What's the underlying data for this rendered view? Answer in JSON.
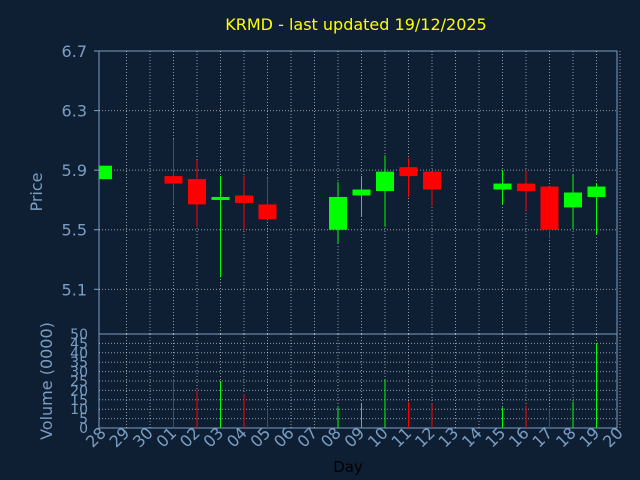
{
  "chart_data": [
    {
      "type": "candlestick",
      "title": "KRMD - last updated 19/12/2025",
      "ylabel": "Price",
      "ylim": [
        4.8,
        6.7
      ],
      "yticks": [
        "6.7",
        "6.3",
        "5.9",
        "5.5",
        "5.1"
      ],
      "grid": true,
      "up_color": "#00ff00",
      "down_color": "#ff0000",
      "candles": [
        {
          "day": "28",
          "open": 5.84,
          "high": 5.93,
          "low": 5.84,
          "close": 5.93
        },
        {
          "day": "01",
          "open": 5.86,
          "high": 6.11,
          "low": 5.67,
          "close": 5.81
        },
        {
          "day": "02",
          "open": 5.84,
          "high": 5.97,
          "low": 5.52,
          "close": 5.67
        },
        {
          "day": "03",
          "open": 5.7,
          "high": 5.86,
          "low": 5.18,
          "close": 5.72
        },
        {
          "day": "04",
          "open": 5.73,
          "high": 5.86,
          "low": 5.5,
          "close": 5.68
        },
        {
          "day": "05",
          "open": 5.67,
          "high": 5.85,
          "low": 5.56,
          "close": 5.57
        },
        {
          "day": "08",
          "open": 5.5,
          "high": 5.82,
          "low": 5.41,
          "close": 5.72
        },
        {
          "day": "09",
          "open": 5.73,
          "high": 5.86,
          "low": 5.59,
          "close": 5.77
        },
        {
          "day": "10",
          "open": 5.76,
          "high": 6.0,
          "low": 5.52,
          "close": 5.89
        },
        {
          "day": "11",
          "open": 5.92,
          "high": 5.98,
          "low": 5.72,
          "close": 5.86
        },
        {
          "day": "12",
          "open": 5.89,
          "high": 5.89,
          "low": 5.66,
          "close": 5.77
        },
        {
          "day": "15",
          "open": 5.77,
          "high": 5.9,
          "low": 5.67,
          "close": 5.81
        },
        {
          "day": "16",
          "open": 5.81,
          "high": 5.9,
          "low": 5.63,
          "close": 5.76
        },
        {
          "day": "17",
          "open": 5.79,
          "high": 5.79,
          "low": 5.44,
          "close": 5.5
        },
        {
          "day": "18",
          "open": 5.65,
          "high": 5.87,
          "low": 5.51,
          "close": 5.75
        },
        {
          "day": "19",
          "open": 5.72,
          "high": 5.81,
          "low": 5.47,
          "close": 5.79
        }
      ]
    },
    {
      "type": "bar",
      "ylabel": "Volume (0000)",
      "xlabel": "Day",
      "ylim": [
        0,
        50
      ],
      "yticks": [
        "50",
        "45",
        "40",
        "35",
        "30",
        "25",
        "20",
        "15",
        "10",
        "5",
        "0"
      ],
      "categories": [
        "28",
        "29",
        "30",
        "01",
        "02",
        "03",
        "04",
        "05",
        "06",
        "07",
        "08",
        "09",
        "10",
        "11",
        "12",
        "13",
        "14",
        "15",
        "16",
        "17",
        "18",
        "19",
        "20"
      ],
      "volumes": [
        {
          "day": "01",
          "value": 26,
          "color": "#ff0000"
        },
        {
          "day": "02",
          "value": 20,
          "color": "#ff0000"
        },
        {
          "day": "03",
          "value": 25,
          "color": "#00ff00"
        },
        {
          "day": "04",
          "value": 18,
          "color": "#ff0000"
        },
        {
          "day": "05",
          "value": 10,
          "color": "#ff0000"
        },
        {
          "day": "08",
          "value": 11,
          "color": "#00ff00"
        },
        {
          "day": "09",
          "value": 13,
          "color": "#00ff00"
        },
        {
          "day": "10",
          "value": 26,
          "color": "#00ff00"
        },
        {
          "day": "11",
          "value": 14,
          "color": "#ff0000"
        },
        {
          "day": "12",
          "value": 13,
          "color": "#ff0000"
        },
        {
          "day": "15",
          "value": 11,
          "color": "#00ff00"
        },
        {
          "day": "16",
          "value": 12,
          "color": "#ff0000"
        },
        {
          "day": "17",
          "value": 10,
          "color": "#ff0000"
        },
        {
          "day": "18",
          "value": 14,
          "color": "#00ff00"
        },
        {
          "day": "19",
          "value": 45,
          "color": "#00ff00"
        }
      ]
    }
  ]
}
